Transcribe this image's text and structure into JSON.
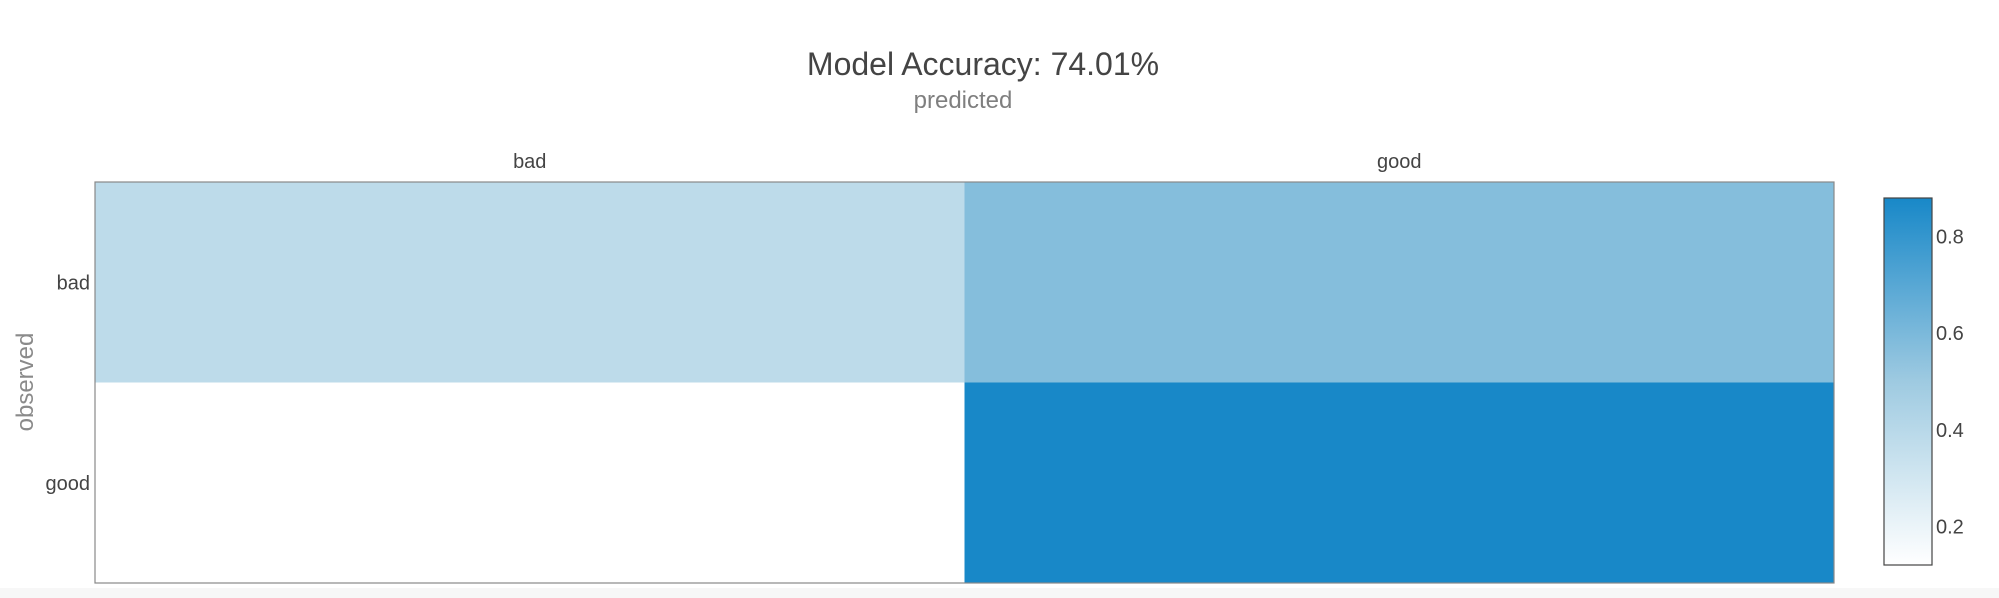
{
  "chart_data": {
    "type": "heatmap",
    "title": "Model Accuracy: 74.01%",
    "xlabel": "predicted",
    "ylabel": "observed",
    "x_categories": [
      "bad",
      "good"
    ],
    "y_categories": [
      "bad",
      "good"
    ],
    "z": [
      [
        0.38,
        0.57
      ],
      [
        0.12,
        0.88
      ]
    ],
    "colorscale": {
      "min": 0.12,
      "max": 0.88,
      "low_color": "#ffffff",
      "mid_color": "#9ecae1",
      "high_color": "#1888c8"
    },
    "colorbar_ticks": [
      0.2,
      0.4,
      0.6,
      0.8
    ],
    "x_axis_side": "top",
    "grid": false
  }
}
